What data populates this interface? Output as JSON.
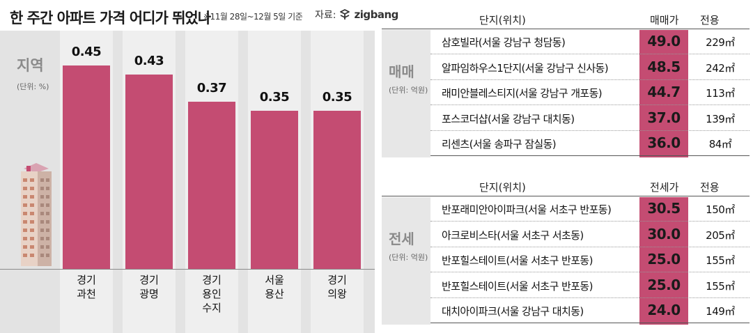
{
  "header": {
    "title": "한 주간 아파트 가격 어디가 뛰었나",
    "subtitle": "※11월 28일~12월 5일 기준",
    "source_label": "자료:",
    "source_brand": "zigbang"
  },
  "chart_data": {
    "type": "bar",
    "title": "지역",
    "unit": "(단위: %)",
    "categories": [
      "경기\n과천",
      "경기\n광명",
      "경기\n용인\n수지",
      "서울\n용산",
      "경기\n의왕"
    ],
    "values": [
      0.45,
      0.43,
      0.37,
      0.35,
      0.35
    ],
    "value_labels": [
      "0.45",
      "0.43",
      "0.37",
      "0.35",
      "0.35"
    ],
    "bar_color": "#c44c72",
    "ylim": [
      0,
      0.5
    ],
    "grid": false
  },
  "sale_table": {
    "category": "매매",
    "unit": "(단위: 억원)",
    "headers": {
      "complex": "단지(위치)",
      "price": "매매가",
      "area": "전용"
    },
    "rows": [
      {
        "name": "삼호빌라(서울 강남구 청담동)",
        "price": "49.0",
        "area": "229㎡"
      },
      {
        "name": "알파임하우스1단지(서울 강남구 신사동)",
        "price": "48.5",
        "area": "242㎡"
      },
      {
        "name": "래미안블레스티지(서울 강남구 개포동)",
        "price": "44.7",
        "area": "113㎡"
      },
      {
        "name": "포스코더샵(서울 강남구 대치동)",
        "price": "37.0",
        "area": "139㎡"
      },
      {
        "name": "리센츠(서울 송파구 잠실동)",
        "price": "36.0",
        "area": "84㎡"
      }
    ]
  },
  "jeonse_table": {
    "category": "전세",
    "unit": "(단위: 억원)",
    "headers": {
      "complex": "단지(위치)",
      "price": "전세가",
      "area": "전용"
    },
    "rows": [
      {
        "name": "반포래미안아이파크(서울 서초구 반포동)",
        "price": "30.5",
        "area": "150㎡"
      },
      {
        "name": "아크로비스타(서울 서초구 서초동)",
        "price": "30.0",
        "area": "205㎡"
      },
      {
        "name": "반포힐스테이트(서울 서초구 반포동)",
        "price": "25.0",
        "area": "155㎡"
      },
      {
        "name": "반포힐스테이트(서울 서초구 반포동)",
        "price": "25.0",
        "area": "155㎡"
      },
      {
        "name": "대치아이파크(서울 강남구 대치동)",
        "price": "24.0",
        "area": "149㎡"
      }
    ]
  },
  "colors": {
    "accent": "#c44c72",
    "panel_bg": "#e3e3e3",
    "muted_text": "#8a8a8a"
  }
}
